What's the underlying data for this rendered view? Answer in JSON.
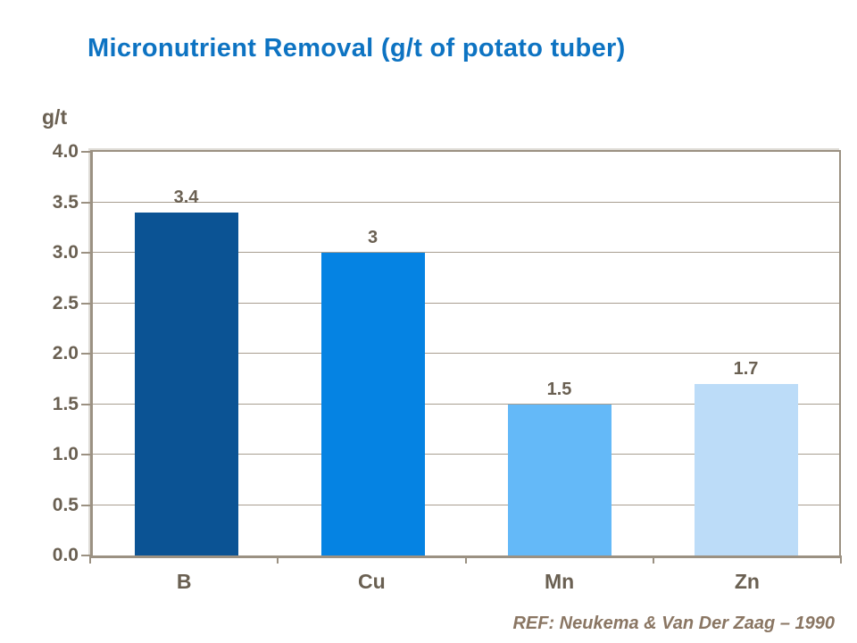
{
  "footer": {
    "reference": "REF: Neukema & Van Der Zaag – 1990"
  },
  "chart_data": {
    "type": "bar",
    "title": "Micronutrient Removal (g/t of potato tuber)",
    "xlabel": "",
    "ylabel": "g/t",
    "categories": [
      "B",
      "Cu",
      "Mn",
      "Zn"
    ],
    "values": [
      3.4,
      3,
      1.5,
      1.7
    ],
    "value_labels": [
      "3.4",
      "3",
      "1.5",
      "1.7"
    ],
    "bar_colors": [
      "#0b5394",
      "#0583e3",
      "#64b9f8",
      "#bcdcf8"
    ],
    "ylim": [
      0,
      4
    ],
    "ytick_step": 0.5,
    "ytick_labels": [
      "0.0",
      "0.5",
      "1.0",
      "1.5",
      "2.0",
      "2.5",
      "3.0",
      "3.5",
      "4.0"
    ],
    "grid": true,
    "legend": "none",
    "colors": {
      "title": "#0d73c2",
      "axis": "#9b9182",
      "gridline": "#a89e90",
      "tick_text": "#6a6052",
      "reference_text": "#8a7663",
      "background": "#ffffff"
    }
  }
}
